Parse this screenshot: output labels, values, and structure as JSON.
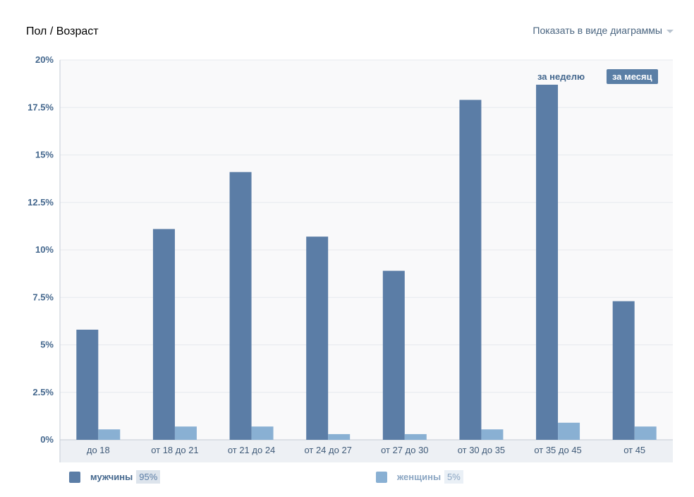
{
  "header": {
    "title": "Пол / Возраст",
    "view_toggle_label": "Показать в виде диаграммы"
  },
  "period_tabs": {
    "week": "за неделю",
    "month": "за месяц"
  },
  "colors": {
    "men": "#5b7da6",
    "women": "#89b0d3",
    "active_tab": "#5b7fa6",
    "axis_text": "#45688e"
  },
  "legend": [
    {
      "label": "мужчины",
      "percent": "95%"
    },
    {
      "label": "женщины",
      "percent": "5%"
    }
  ],
  "chart_data": {
    "type": "bar",
    "title": "Пол / Возраст",
    "categories": [
      "до 18",
      "от 18 до 21",
      "от 21 до 24",
      "от 24 до 27",
      "от 27 до 30",
      "от 30 до 35",
      "от 35 до 45",
      "от 45"
    ],
    "series": [
      {
        "name": "мужчины",
        "values": [
          5.8,
          11.1,
          14.1,
          10.7,
          8.9,
          17.9,
          18.7,
          7.3
        ]
      },
      {
        "name": "женщины",
        "values": [
          0.55,
          0.7,
          0.7,
          0.3,
          0.3,
          0.55,
          0.9,
          0.7
        ]
      }
    ],
    "y_ticks": [
      "0%",
      "2.5%",
      "5%",
      "7.5%",
      "10%",
      "12.5%",
      "15%",
      "17.5%",
      "20%"
    ],
    "ylim": [
      0,
      20
    ],
    "xlabel": "",
    "ylabel": "",
    "grid": true
  }
}
